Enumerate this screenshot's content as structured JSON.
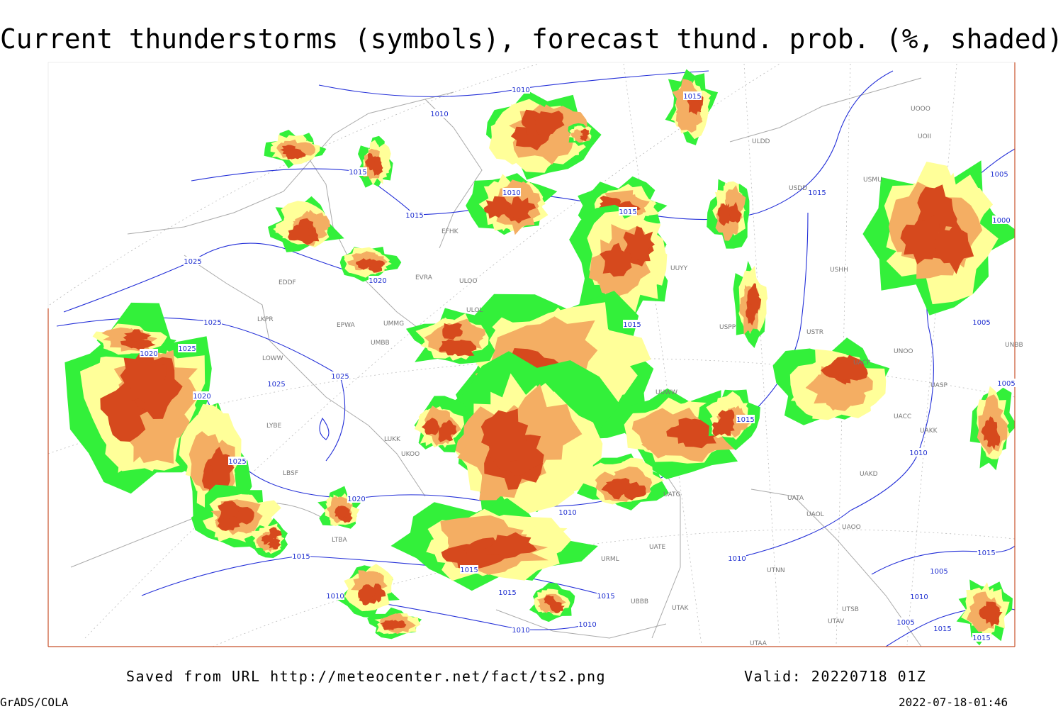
{
  "header": {
    "title": "Current thunderstorms (symbols), forecast thund. prob. (%, shaded)"
  },
  "map": {
    "isobar_labels": [
      "1010",
      "1010",
      "1015",
      "1015",
      "1010",
      "1015",
      "1015",
      "1015",
      "1025",
      "1020",
      "1025",
      "1015",
      "1020",
      "1025",
      "1025",
      "1025",
      "1020",
      "1015",
      "1025",
      "1010",
      "1020",
      "1010",
      "1015",
      "1015",
      "1010",
      "1015",
      "1015",
      "1010",
      "1010",
      "1010",
      "1015",
      "1005",
      "1000",
      "1005",
      "1005",
      "1015",
      "1005",
      "1010",
      "1005",
      "1015"
    ],
    "station_labels": [
      "ULDD",
      "USDD",
      "USMU",
      "UOOO",
      "UOII",
      "UUYY",
      "USHH",
      "USPP",
      "USTR",
      "UNOO",
      "UNBB",
      "UACP",
      "UASP",
      "UACC",
      "UAKK",
      "UAKD",
      "UATA",
      "UAOL",
      "UAOO",
      "UATE",
      "UATG",
      "URML",
      "UTNN",
      "UBBB",
      "UTAK",
      "UTSB",
      "UTAV",
      "UTAA",
      "EDDF",
      "EPWA",
      "LKPR",
      "LOWW",
      "UMMG",
      "UMBB",
      "EVRA",
      "EFHK",
      "ULOO",
      "ULOL",
      "LYBE",
      "LUKK",
      "UKOO",
      "LBSF",
      "LTBA",
      "UUWW"
    ]
  },
  "footer": {
    "source": "Saved from URL http://meteocenter.net/fact/ts2.png",
    "valid": "Valid: 20220718 01Z",
    "software": "GrADS/COLA",
    "timestamp": "2022-07-18-01:46"
  }
}
